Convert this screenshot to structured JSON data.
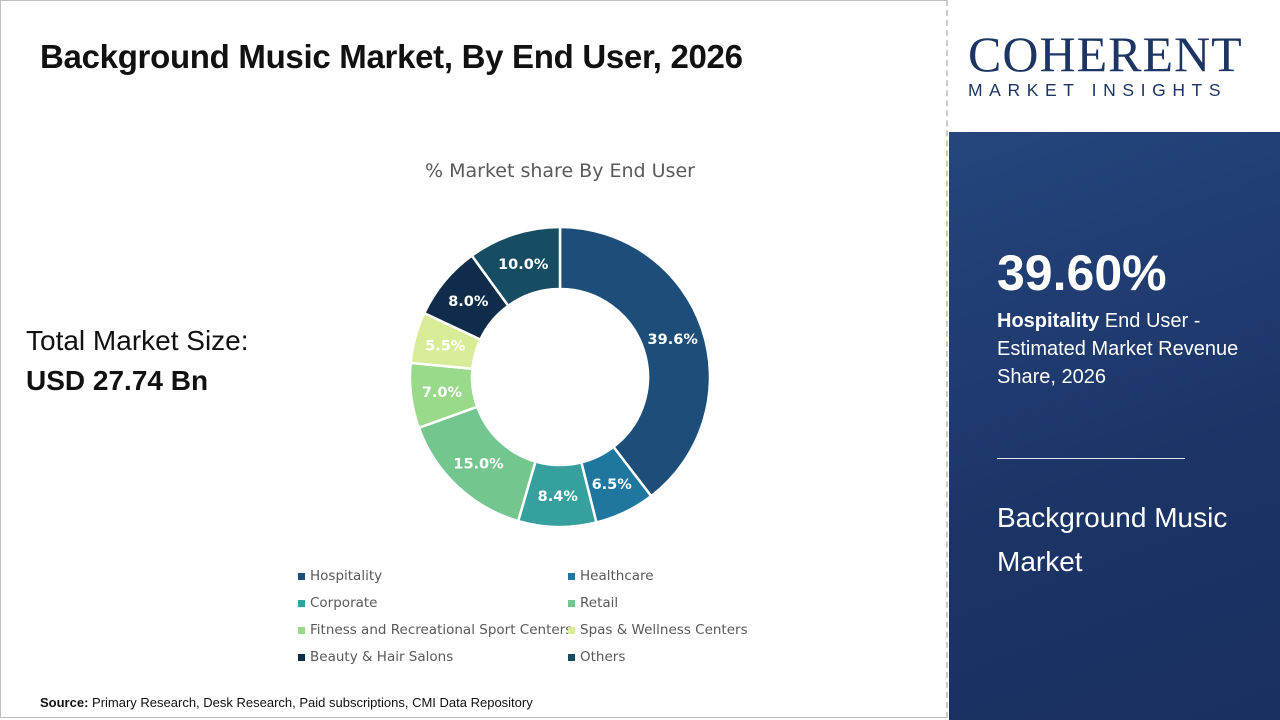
{
  "title": "Background Music Market, By End User, 2026",
  "total": {
    "label": "Total Market Size:",
    "value": "USD 27.74 Bn"
  },
  "source": {
    "label": "Source:",
    "text": " Primary Research, Desk Research, Paid subscriptions, CMI Data Repository"
  },
  "logo": {
    "main": "COHERENT",
    "sub": "MARKET INSIGHTS"
  },
  "panel": {
    "pct": "39.60%",
    "highlight": "Hospitality",
    "desc": " End User - Estimated Market Revenue Share, 2026",
    "market": "Background Music Market"
  },
  "chart_data": {
    "type": "pie",
    "donut": true,
    "title": "% Market share By End User",
    "categories": [
      "Hospitality",
      "Healthcare",
      "Corporate",
      "Retail",
      "Fitness and Recreational Sport Centers",
      "Spas & Wellness Centers",
      "Beauty & Hair Salons",
      "Others"
    ],
    "values": [
      39.6,
      6.5,
      8.4,
      15.0,
      7.0,
      5.5,
      8.0,
      10.0
    ],
    "labels": [
      "39.6%",
      "6.5%",
      "8.4%",
      "15.0%",
      "7.0%",
      "5.5%",
      "8.0%",
      "10.0%"
    ],
    "colors": [
      "#1d4e79",
      "#1f77a0",
      "#35a09e",
      "#74c68f",
      "#98d98a",
      "#d8ec97",
      "#0f2d4a",
      "#164d63"
    ],
    "legend": "bottom"
  }
}
